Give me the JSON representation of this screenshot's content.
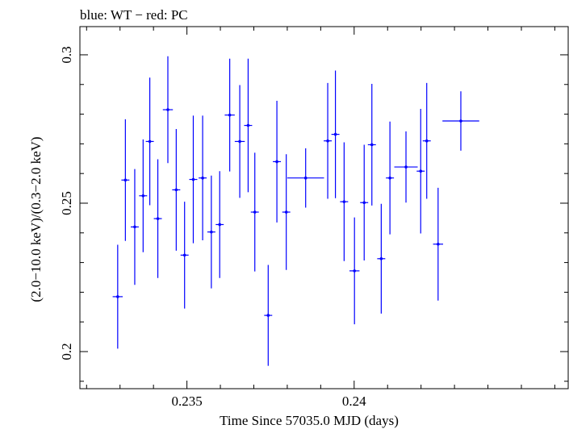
{
  "chart_data": {
    "type": "scatter",
    "title": "blue: WT − red: PC",
    "xlabel": "Time Since 57035.0 MJD (days)",
    "ylabel": "(2.0−10.0 keV)/(0.3−2.0 keV)",
    "xlim": [
      0.2318,
      0.2464
    ],
    "ylim": [
      0.1875,
      0.3095
    ],
    "x_ticks": [
      0.235,
      0.24
    ],
    "x_tick_labels": [
      "0.235",
      "0.24"
    ],
    "y_ticks": [
      0.2,
      0.25,
      0.3
    ],
    "y_tick_labels": [
      "0.2",
      "0.25",
      "0.3"
    ],
    "grid": false,
    "series": [
      {
        "color": "#0000ff",
        "points": [
          {
            "x": 0.23293,
            "y": 0.2185,
            "xerr": 0.00015,
            "yerr": 0.0175
          },
          {
            "x": 0.23316,
            "y": 0.2578,
            "xerr": 0.00012,
            "yerr": 0.0205
          },
          {
            "x": 0.23344,
            "y": 0.242,
            "xerr": 0.00012,
            "yerr": 0.0195
          },
          {
            "x": 0.23369,
            "y": 0.2525,
            "xerr": 0.00012,
            "yerr": 0.019
          },
          {
            "x": 0.23389,
            "y": 0.2708,
            "xerr": 0.00012,
            "yerr": 0.0215
          },
          {
            "x": 0.23413,
            "y": 0.2448,
            "xerr": 0.00012,
            "yerr": 0.02
          },
          {
            "x": 0.23443,
            "y": 0.2815,
            "xerr": 0.00015,
            "yerr": 0.018
          },
          {
            "x": 0.23468,
            "y": 0.2545,
            "xerr": 0.00012,
            "yerr": 0.0205
          },
          {
            "x": 0.23493,
            "y": 0.2325,
            "xerr": 0.00012,
            "yerr": 0.018
          },
          {
            "x": 0.23519,
            "y": 0.258,
            "xerr": 0.00012,
            "yerr": 0.0215
          },
          {
            "x": 0.23547,
            "y": 0.2585,
            "xerr": 0.00012,
            "yerr": 0.021
          },
          {
            "x": 0.23573,
            "y": 0.2403,
            "xerr": 0.00012,
            "yerr": 0.019
          },
          {
            "x": 0.23598,
            "y": 0.2428,
            "xerr": 0.00012,
            "yerr": 0.018
          },
          {
            "x": 0.23628,
            "y": 0.2797,
            "xerr": 0.00015,
            "yerr": 0.019
          },
          {
            "x": 0.23658,
            "y": 0.2708,
            "xerr": 0.00015,
            "yerr": 0.019
          },
          {
            "x": 0.23683,
            "y": 0.2762,
            "xerr": 0.00012,
            "yerr": 0.0225
          },
          {
            "x": 0.23703,
            "y": 0.247,
            "xerr": 0.00012,
            "yerr": 0.02
          },
          {
            "x": 0.23743,
            "y": 0.2122,
            "xerr": 0.00012,
            "yerr": 0.017
          },
          {
            "x": 0.23769,
            "y": 0.264,
            "xerr": 0.00012,
            "yerr": 0.0205
          },
          {
            "x": 0.23797,
            "y": 0.247,
            "xerr": 0.00012,
            "yerr": 0.0195
          },
          {
            "x": 0.23855,
            "y": 0.2585,
            "xerr": 0.00055,
            "yerr": 0.01
          },
          {
            "x": 0.23921,
            "y": 0.271,
            "xerr": 0.00012,
            "yerr": 0.0195
          },
          {
            "x": 0.23944,
            "y": 0.2732,
            "xerr": 0.00012,
            "yerr": 0.0215
          },
          {
            "x": 0.2397,
            "y": 0.2505,
            "xerr": 0.00012,
            "yerr": 0.02
          },
          {
            "x": 0.24001,
            "y": 0.2272,
            "xerr": 0.00015,
            "yerr": 0.018
          },
          {
            "x": 0.2403,
            "y": 0.2502,
            "xerr": 0.00012,
            "yerr": 0.0195
          },
          {
            "x": 0.24053,
            "y": 0.2697,
            "xerr": 0.00012,
            "yerr": 0.0205
          },
          {
            "x": 0.24081,
            "y": 0.2313,
            "xerr": 0.00012,
            "yerr": 0.0185
          },
          {
            "x": 0.24107,
            "y": 0.2585,
            "xerr": 0.00012,
            "yerr": 0.019
          },
          {
            "x": 0.24155,
            "y": 0.2622,
            "xerr": 0.00035,
            "yerr": 0.012
          },
          {
            "x": 0.24199,
            "y": 0.2608,
            "xerr": 0.00012,
            "yerr": 0.021
          },
          {
            "x": 0.24217,
            "y": 0.271,
            "xerr": 0.00012,
            "yerr": 0.0195
          },
          {
            "x": 0.24251,
            "y": 0.2362,
            "xerr": 0.00015,
            "yerr": 0.019
          },
          {
            "x": 0.24319,
            "y": 0.2777,
            "xerr": 0.00055,
            "yerr": 0.01
          }
        ]
      }
    ]
  }
}
